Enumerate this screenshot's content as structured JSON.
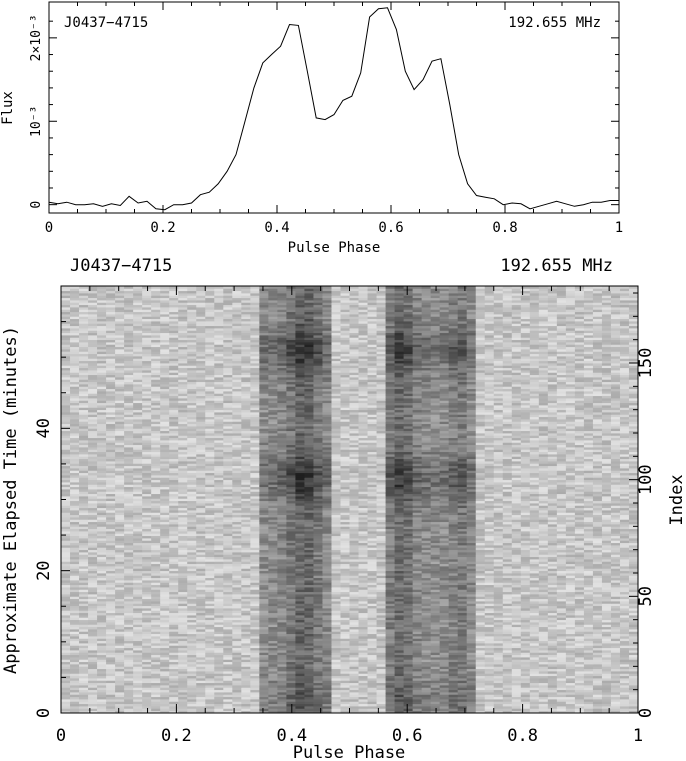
{
  "chart_data": [
    {
      "type": "line",
      "pulsar": "J0437−4715",
      "frequency": "192.655 MHz",
      "xlabel": "Pulse Phase",
      "ylabel": "Flux",
      "xlim": [
        0,
        1
      ],
      "ylim": [
        -0.0001,
        0.00243
      ],
      "x_ticks": [
        0,
        0.2,
        0.4,
        0.6,
        0.8,
        1
      ],
      "x_tick_labels": [
        "0",
        "0.2",
        "0.4",
        "0.6",
        "0.8",
        "1"
      ],
      "y_ticks": [
        0,
        0.001,
        0.002
      ],
      "y_tick_labels": [
        "0",
        "10⁻³",
        "2×10⁻³"
      ],
      "series": [
        {
          "x": [
            0.0,
            0.0156,
            0.0313,
            0.0469,
            0.0625,
            0.0781,
            0.0938,
            0.1094,
            0.125,
            0.1406,
            0.1563,
            0.1719,
            0.1875,
            0.2031,
            0.2188,
            0.2344,
            0.25,
            0.2656,
            0.2813,
            0.2969,
            0.3125,
            0.3281,
            0.3438,
            0.3594,
            0.375,
            0.3906,
            0.4063,
            0.4219,
            0.4375,
            0.4531,
            0.4688,
            0.4844,
            0.5,
            0.5156,
            0.5313,
            0.5469,
            0.5625,
            0.5781,
            0.5938,
            0.6094,
            0.625,
            0.6406,
            0.6563,
            0.6719,
            0.6875,
            0.7031,
            0.7188,
            0.7344,
            0.75,
            0.7656,
            0.7813,
            0.7969,
            0.8125,
            0.8281,
            0.8438,
            0.8594,
            0.875,
            0.8906,
            0.9063,
            0.9219,
            0.9375,
            0.9531,
            0.9688,
            0.9844,
            1.0
          ],
          "values": [
            3e-05,
            1e-05,
            3e-05,
            0.0,
            0.0,
            1e-05,
            -2e-05,
            1e-05,
            -1e-05,
            0.0001,
            2e-05,
            4e-05,
            -5e-05,
            -6e-05,
            0.0,
            0.0,
            2e-05,
            0.00012,
            0.00015,
            0.00025,
            0.0004,
            0.0006,
            0.001,
            0.0014,
            0.0017,
            0.0018,
            0.0019,
            0.00216,
            0.00215,
            0.0016,
            0.00104,
            0.00102,
            0.00108,
            0.00125,
            0.0013,
            0.00158,
            0.00225,
            0.00235,
            0.00236,
            0.0021,
            0.0016,
            0.00138,
            0.0015,
            0.00172,
            0.00175,
            0.0012,
            0.0006,
            0.00025,
            0.00011,
            9e-05,
            7e-05,
            0.0,
            2e-05,
            1e-05,
            -5e-05,
            -2e-05,
            1e-05,
            4e-05,
            1e-05,
            -2e-05,
            0.0,
            3e-05,
            3e-05,
            5e-05,
            5e-05
          ]
        }
      ]
    },
    {
      "type": "heatmap",
      "pulsar": "J0437−4715",
      "frequency": "192.655 MHz",
      "xlabel": "Pulse Phase",
      "ylabel": "Approximate Elapsed Time (minutes)",
      "ylabel_right": "Index",
      "xlim": [
        0,
        1
      ],
      "ylim": [
        0,
        60
      ],
      "ylim_right": [
        0,
        183
      ],
      "x_ticks": [
        0,
        0.2,
        0.4,
        0.6,
        0.8,
        1
      ],
      "x_tick_labels": [
        "0",
        "0.2",
        "0.4",
        "0.6",
        "0.8",
        "1"
      ],
      "y_ticks": [
        0,
        20,
        40
      ],
      "y_tick_labels": [
        "0",
        "20",
        "40"
      ],
      "y_right_ticks": [
        0,
        50,
        100,
        150
      ],
      "y_right_tick_labels": [
        "0",
        "50",
        "100",
        "150"
      ],
      "colormap": "grayscale (dark = high flux)",
      "n_phase_bins": 64,
      "n_subints": 183,
      "emission_regions": [
        {
          "phase_range": [
            0.35,
            0.47
          ],
          "peak_phase": 0.42
        },
        {
          "phase_range": [
            0.56,
            0.72
          ],
          "peak_phase": 0.59
        }
      ],
      "bright_epochs_index": [
        100,
        155
      ]
    }
  ]
}
